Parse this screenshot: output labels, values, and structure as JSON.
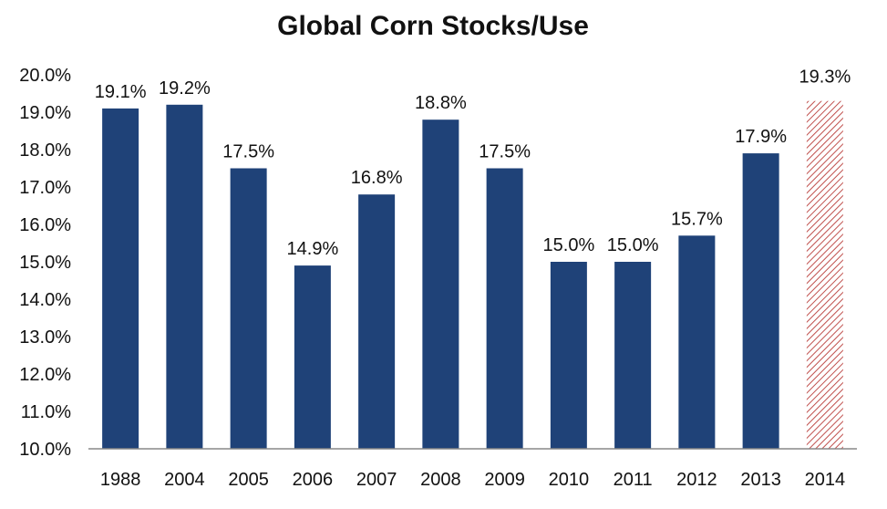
{
  "chart_data": {
    "type": "bar",
    "title": "Global Corn Stocks/Use",
    "xlabel": "",
    "ylabel": "",
    "categories": [
      "1988",
      "2004",
      "2005",
      "2006",
      "2007",
      "2008",
      "2009",
      "2010",
      "2011",
      "2012",
      "2013",
      "2014"
    ],
    "values": [
      19.1,
      19.2,
      17.5,
      14.9,
      16.8,
      18.8,
      17.5,
      15.0,
      15.0,
      15.7,
      17.9,
      19.3
    ],
    "data_labels": [
      "19.1%",
      "19.2%",
      "17.5%",
      "14.9%",
      "16.8%",
      "18.8%",
      "17.5%",
      "15.0%",
      "15.0%",
      "15.7%",
      "17.9%",
      "19.3%"
    ],
    "bar_styles": [
      "solid",
      "solid",
      "solid",
      "solid",
      "solid",
      "solid",
      "solid",
      "solid",
      "solid",
      "solid",
      "solid",
      "hatched"
    ],
    "ylim": [
      10.0,
      20.0
    ],
    "yticks": [
      10.0,
      11.0,
      12.0,
      13.0,
      14.0,
      15.0,
      16.0,
      17.0,
      18.0,
      19.0,
      20.0
    ],
    "ytick_labels": [
      "10.0%",
      "11.0%",
      "12.0%",
      "13.0%",
      "14.0%",
      "15.0%",
      "16.0%",
      "17.0%",
      "18.0%",
      "19.0%",
      "20.0%"
    ],
    "grid": false,
    "legend": "none",
    "colors": {
      "bar": "#1f4278",
      "hatched_bar": "#c0504d",
      "axis": "#888888",
      "text": "#111111",
      "projected_label": "#7f7f7f"
    }
  }
}
